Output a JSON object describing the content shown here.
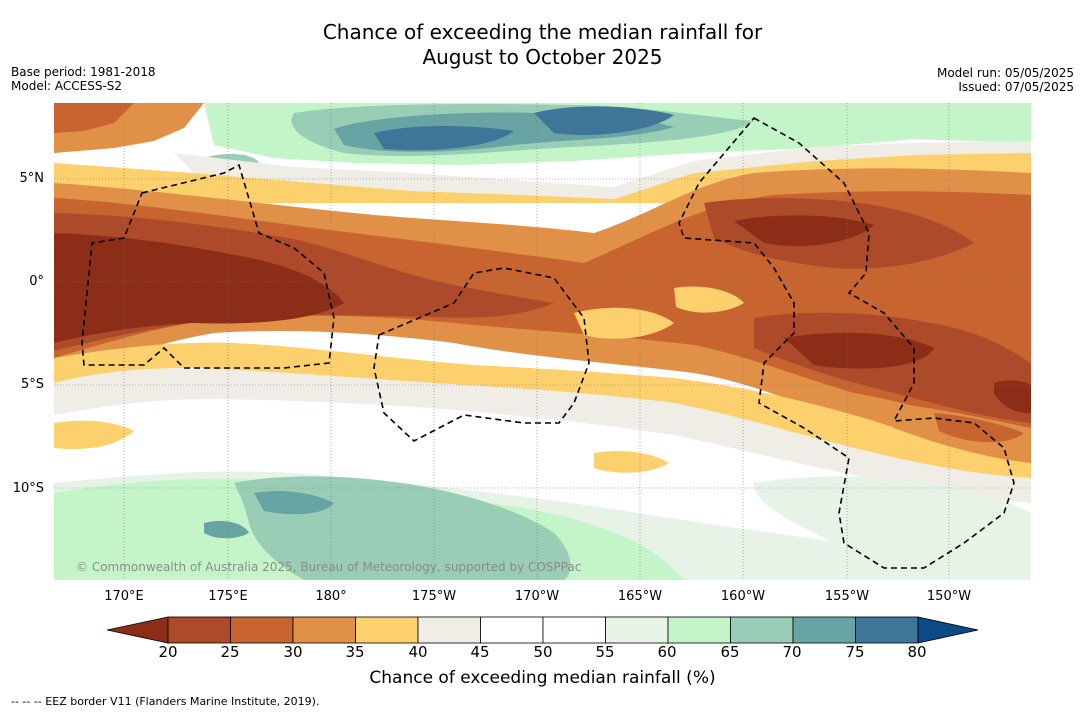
{
  "title": {
    "line1": "Chance of exceeding the median rainfall for",
    "line2": "August to October 2025"
  },
  "meta": {
    "base_period": "Base period: 1981-2018",
    "model": "Model: ACCESS-S2",
    "model_run": "Model run: 05/05/2025",
    "issued": "Issued: 07/05/2025"
  },
  "map": {
    "credit": "© Commonwealth of Australia 2025, Bureau of Meteorology, supported by COSPPac",
    "lat_labels": [
      "5°N",
      "0°",
      "5°S",
      "10°S"
    ],
    "lon_labels": [
      "170°E",
      "175°E",
      "180°",
      "175°W",
      "170°W",
      "165°W",
      "160°W",
      "155°W",
      "150°W"
    ]
  },
  "colorbar": {
    "label": "Chance of exceeding median rainfall (%)",
    "ticks": [
      "20",
      "25",
      "30",
      "35",
      "40",
      "45",
      "50",
      "55",
      "60",
      "65",
      "70",
      "75",
      "80"
    ],
    "colors": [
      "#8c2d18",
      "#ac4a29",
      "#c8642f",
      "#e09147",
      "#fdd06e",
      "#f0ece6",
      "#ffffff",
      "#ffffff",
      "#e6f3e6",
      "#c4f5c8",
      "#9acdb5",
      "#68a4a4",
      "#3e7598",
      "#0c4a86"
    ]
  },
  "footer": "--  --  -- EEZ border V11 (Flanders Marine Institute, 2019)."
}
